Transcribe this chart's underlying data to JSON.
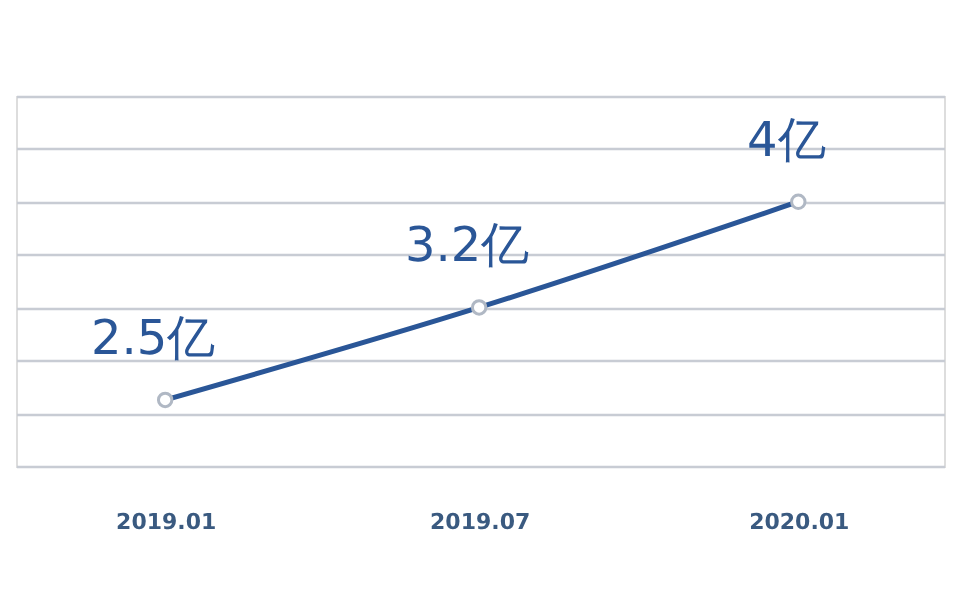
{
  "chart_data": {
    "type": "line",
    "x": [
      "2019-01",
      "2019-07",
      "2020-01"
    ],
    "xlim": [
      "2018-10-07",
      "2020-03-25"
    ],
    "xticks": [
      {
        "value": "2019-01",
        "label": "2019.01"
      },
      {
        "value": "2019-07",
        "label": "2019.07"
      },
      {
        "value": "2020-01",
        "label": "2020.01"
      }
    ],
    "ylim": [
      2.0,
      4.8
    ],
    "yticks": [
      {
        "value": 2.0,
        "label": null
      },
      {
        "value": 2.4,
        "label": null
      },
      {
        "value": 2.8,
        "label": null
      },
      {
        "value": 3.2,
        "label": null
      },
      {
        "value": 3.6,
        "label": null
      },
      {
        "value": 4.0,
        "label": null
      },
      {
        "value": 4.4,
        "label": null
      },
      {
        "value": 4.8,
        "label": null
      }
    ],
    "series": [
      {
        "color": "#2a5697",
        "values": [
          2.5,
          3.2,
          4
        ],
        "value_labels": [
          "2.5亿",
          "3.2亿",
          "4亿"
        ]
      }
    ],
    "grid": "y",
    "tick_labels": "x",
    "marker": "circle",
    "line_style": "solid"
  }
}
